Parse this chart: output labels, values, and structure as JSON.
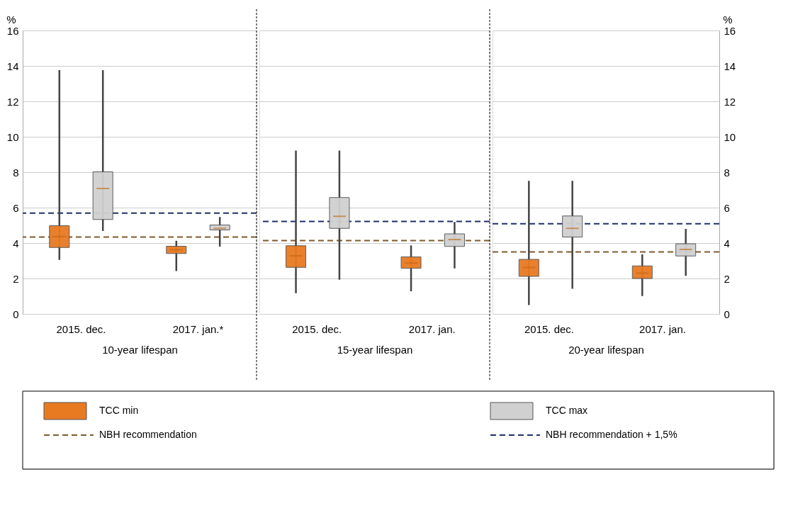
{
  "chart_data": [
    {
      "type": "box",
      "categories": [
        "2015. dec.",
        "2017. jan.*"
      ],
      "xlabel": "10-year lifespan",
      "ylabel": "%",
      "ylim": [
        0,
        16
      ],
      "yticks": [
        0,
        2,
        4,
        6,
        8,
        10,
        12,
        14,
        16
      ],
      "grid": "y",
      "legend": "bottom",
      "tick_labels": true,
      "series": [
        {
          "name": "TCC min",
          "color": "#e87a22",
          "boxes": [
            {
              "low": 3.05,
              "q1": 3.75,
              "median": 4.37,
              "q3": 4.98,
              "high": 13.76
            },
            {
              "low": 2.42,
              "q1": 3.41,
              "median": 3.62,
              "q3": 3.82,
              "high": 4.13
            }
          ]
        },
        {
          "name": "TCC max",
          "color": "#d0d0d0",
          "boxes": [
            {
              "low": 4.68,
              "q1": 5.33,
              "median": 7.08,
              "q3": 8.02,
              "high": 13.76
            },
            {
              "low": 3.8,
              "q1": 4.74,
              "median": 4.83,
              "q3": 5.02,
              "high": 5.47
            }
          ]
        }
      ],
      "ref_lines": [
        {
          "axis": "y",
          "value": 4.34,
          "label": "NBH recommendation",
          "color": "#7f5a2e",
          "line_style": "dashed"
        },
        {
          "axis": "y",
          "value": 5.69,
          "label": "NBH recommendation + 1,5%",
          "color": "#1f2f6b",
          "line_style": "dashed"
        }
      ]
    },
    {
      "type": "box",
      "categories": [
        "2015. dec.",
        "2017. jan."
      ],
      "xlabel": "15-year lifespan",
      "ylim": [
        0,
        16
      ],
      "yticks": [
        0,
        2,
        4,
        6,
        8,
        10,
        12,
        14,
        16
      ],
      "grid": "y",
      "tick_labels": "x",
      "series": [
        {
          "color": "#e87a22",
          "boxes": [
            {
              "low": 1.17,
              "q1": 2.63,
              "median": 3.28,
              "q3": 3.85,
              "high": 9.22
            },
            {
              "low": 1.28,
              "q1": 2.58,
              "median": 2.87,
              "q3": 3.22,
              "high": 3.87
            }
          ]
        },
        {
          "color": "#d0d0d0",
          "boxes": [
            {
              "low": 1.93,
              "q1": 4.83,
              "median": 5.51,
              "q3": 6.57,
              "high": 9.22
            },
            {
              "low": 2.57,
              "q1": 3.81,
              "median": 4.2,
              "q3": 4.52,
              "high": 5.19
            }
          ]
        }
      ],
      "ref_lines": [
        {
          "axis": "y",
          "value": 4.14,
          "color": "#7f5a2e",
          "line_style": "dashed"
        },
        {
          "axis": "y",
          "value": 5.22,
          "color": "#1f2f6b",
          "line_style": "dashed"
        }
      ]
    },
    {
      "type": "box",
      "categories": [
        "2015. dec.",
        "2017. jan."
      ],
      "xlabel": "20-year lifespan",
      "y2label": "%",
      "y2lim": [
        0,
        16
      ],
      "y2ticks": [
        0,
        2,
        4,
        6,
        8,
        10,
        12,
        14,
        16
      ],
      "grid": "y",
      "tick_labels": "xy2",
      "series": [
        {
          "color": "#e87a22",
          "axis": "y2",
          "boxes": [
            {
              "low": 0.5,
              "q1": 2.12,
              "median": 2.62,
              "q3": 3.08,
              "high": 7.51
            },
            {
              "low": 1.01,
              "q1": 2.0,
              "median": 2.3,
              "q3": 2.71,
              "high": 3.36
            }
          ]
        },
        {
          "color": "#d0d0d0",
          "axis": "y2",
          "boxes": [
            {
              "low": 1.42,
              "q1": 4.34,
              "median": 4.83,
              "q3": 5.53,
              "high": 7.51
            },
            {
              "low": 2.15,
              "q1": 3.27,
              "median": 3.64,
              "q3": 3.96,
              "high": 4.8
            }
          ]
        }
      ],
      "ref_lines": [
        {
          "axis": "y2",
          "value": 3.5,
          "color": "#7f5a2e",
          "line_style": "dashed"
        },
        {
          "axis": "y2",
          "value": 5.09,
          "color": "#1f2f6b",
          "line_style": "dashed"
        }
      ]
    }
  ]
}
